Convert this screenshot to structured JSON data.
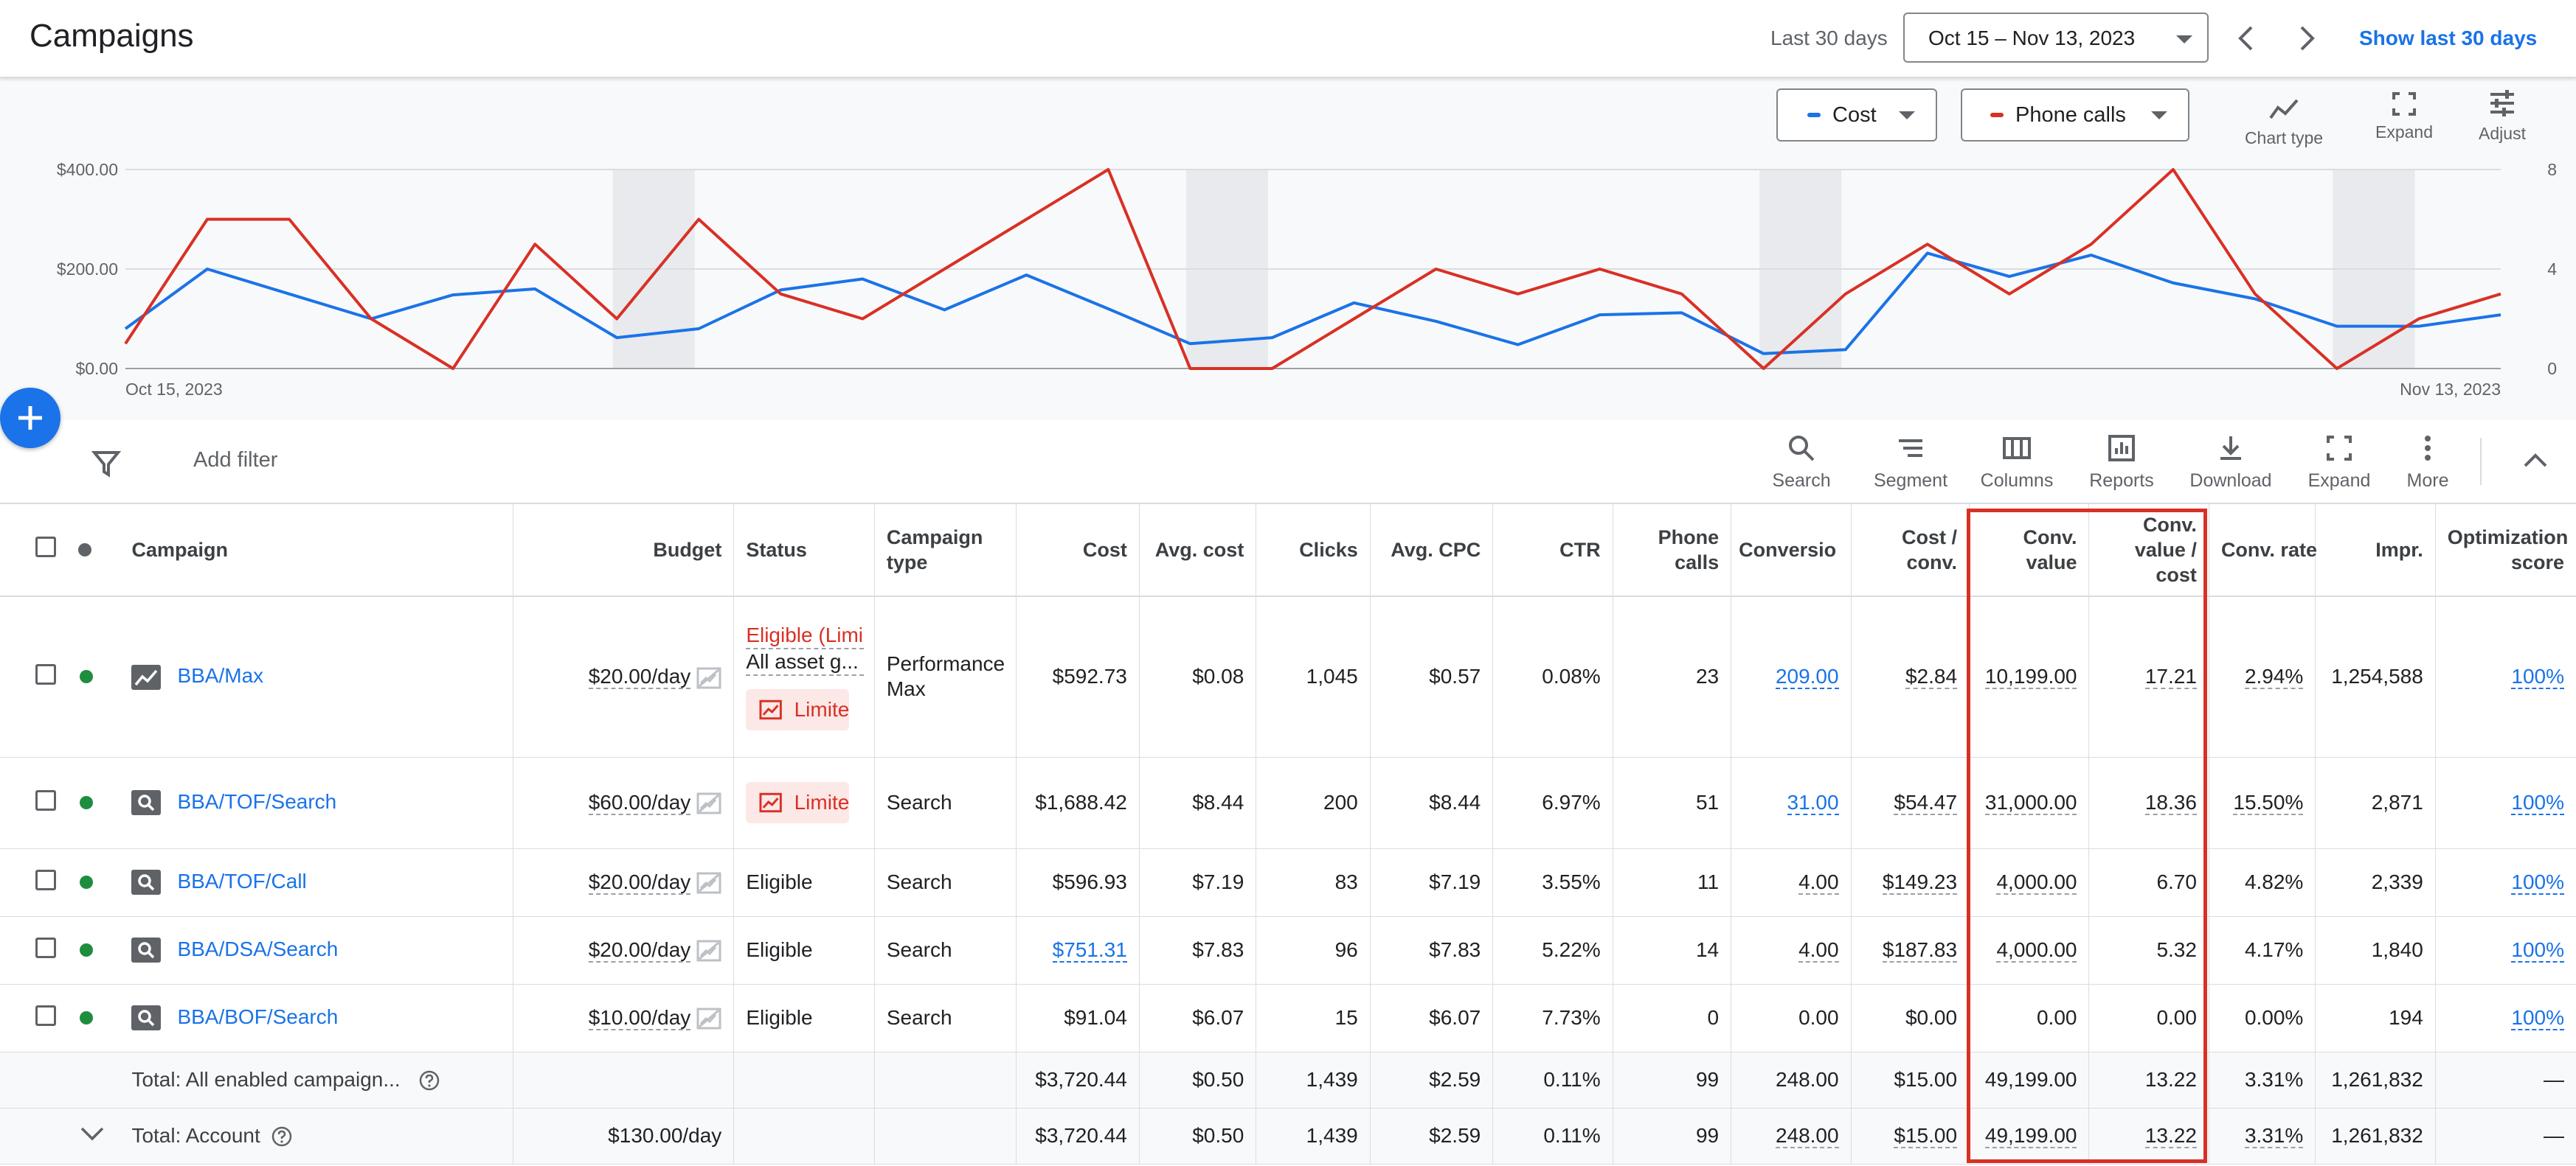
{
  "header": {
    "title": "Campaigns",
    "range_label": "Last 30 days",
    "date_range": "Oct 15 – Nov 13, 2023",
    "show_last": "Show last 30 days"
  },
  "chart_toolbar": {
    "metric1": "Cost",
    "metric2": "Phone calls",
    "chart_type": "Chart type",
    "expand": "Expand",
    "adjust": "Adjust"
  },
  "chart_data": {
    "type": "line",
    "x_start_label": "Oct 15, 2023",
    "x_end_label": "Nov 13, 2023",
    "y_left_ticks": [
      "$400.00",
      "$200.00",
      "$0.00"
    ],
    "y_right_ticks": [
      "8",
      "4",
      "0"
    ],
    "ylim_left": [
      0,
      400
    ],
    "ylim_right": [
      0,
      8
    ],
    "grid": true,
    "colors": {
      "cost": "#1a73e8",
      "phone_calls": "#d93025"
    },
    "series": [
      {
        "name": "Cost",
        "axis": "left",
        "values": [
          80,
          200,
          150,
          100,
          148,
          160,
          62,
          80,
          158,
          180,
          118,
          188,
          120,
          50,
          62,
          132,
          95,
          48,
          108,
          112,
          30,
          38,
          232,
          185,
          228,
          172,
          140,
          85,
          85,
          108
        ]
      },
      {
        "name": "Phone calls",
        "axis": "right",
        "values": [
          1,
          6,
          6,
          2,
          0,
          5,
          2,
          6,
          3,
          2,
          4,
          6,
          8,
          0,
          0,
          2,
          4,
          3,
          4,
          3,
          0,
          3,
          5,
          3,
          5,
          8,
          3,
          0,
          2,
          3
        ]
      }
    ],
    "weekend_bands": [
      [
        6,
        7
      ],
      [
        13,
        14
      ],
      [
        20,
        21
      ],
      [
        27,
        28
      ]
    ]
  },
  "filter_bar": {
    "add_filter": "Add filter",
    "tools": [
      "Search",
      "Segment",
      "Columns",
      "Reports",
      "Download",
      "Expand",
      "More"
    ]
  },
  "table": {
    "headers": {
      "campaign": "Campaign",
      "budget": "Budget",
      "status": "Status",
      "type_1": "Campaign",
      "type_2": "type",
      "cost": "Cost",
      "avg_cost": "Avg. cost",
      "clicks": "Clicks",
      "avg_cpc": "Avg. CPC",
      "ctr": "CTR",
      "phone_1": "Phone",
      "phone_2": "calls",
      "conversions": "Conversio",
      "cost_conv_1": "Cost /",
      "cost_conv_2": "conv.",
      "conv_value_1": "Conv.",
      "conv_value_2": "value",
      "cvc_1": "Conv.",
      "cvc_2": "value /",
      "cvc_3": "cost",
      "conv_rate": "Conv. rate",
      "impr": "Impr.",
      "opt_1": "Optimization",
      "opt_2": "score"
    },
    "rows": [
      {
        "name": "BBA/Max",
        "budget": "$20.00/day",
        "status1": "Eligible (Limi",
        "status2": "All asset g...",
        "limited": "Limite",
        "type1": "Performance",
        "type2": "Max",
        "cost": "$592.73",
        "avg_cost": "$0.08",
        "clicks": "1,045",
        "avg_cpc": "$0.57",
        "ctr": "0.08%",
        "phone": "23",
        "conv": "209.00",
        "cost_conv": "$2.84",
        "conv_value": "10,199.00",
        "cvc": "17.21",
        "conv_rate": "2.94%",
        "impr": "1,254,588",
        "opt": "100%"
      },
      {
        "name": "BBA/TOF/Search",
        "budget": "$60.00/day",
        "limited": "Limite",
        "type": "Search",
        "cost": "$1,688.42",
        "avg_cost": "$8.44",
        "clicks": "200",
        "avg_cpc": "$8.44",
        "ctr": "6.97%",
        "phone": "51",
        "conv": "31.00",
        "cost_conv": "$54.47",
        "conv_value": "31,000.00",
        "cvc": "18.36",
        "conv_rate": "15.50%",
        "impr": "2,871",
        "opt": "100%"
      },
      {
        "name": "BBA/TOF/Call",
        "budget": "$20.00/day",
        "status": "Eligible",
        "type": "Search",
        "cost": "$596.93",
        "avg_cost": "$7.19",
        "clicks": "83",
        "avg_cpc": "$7.19",
        "ctr": "3.55%",
        "phone": "11",
        "conv": "4.00",
        "cost_conv": "$149.23",
        "conv_value": "4,000.00",
        "cvc": "6.70",
        "conv_rate": "4.82%",
        "impr": "2,339",
        "opt": "100%"
      },
      {
        "name": "BBA/DSA/Search",
        "budget": "$20.00/day",
        "status": "Eligible",
        "type": "Search",
        "cost": "$751.31",
        "avg_cost": "$7.83",
        "clicks": "96",
        "avg_cpc": "$7.83",
        "ctr": "5.22%",
        "phone": "14",
        "conv": "4.00",
        "cost_conv": "$187.83",
        "conv_value": "4,000.00",
        "cvc": "5.32",
        "conv_rate": "4.17%",
        "impr": "1,840",
        "opt": "100%"
      },
      {
        "name": "BBA/BOF/Search",
        "budget": "$10.00/day",
        "status": "Eligible",
        "type": "Search",
        "cost": "$91.04",
        "avg_cost": "$6.07",
        "clicks": "15",
        "avg_cpc": "$6.07",
        "ctr": "7.73%",
        "phone": "0",
        "conv": "0.00",
        "cost_conv": "$0.00",
        "conv_value": "0.00",
        "cvc": "0.00",
        "conv_rate": "0.00%",
        "impr": "194",
        "opt": "100%"
      }
    ],
    "totals": [
      {
        "label": "Total: All enabled campaign...",
        "budget": "",
        "cost": "$3,720.44",
        "avg_cost": "$0.50",
        "clicks": "1,439",
        "avg_cpc": "$2.59",
        "ctr": "0.11%",
        "phone": "99",
        "conv": "248.00",
        "cost_conv": "$15.00",
        "conv_value": "49,199.00",
        "cvc": "13.22",
        "conv_rate": "3.31%",
        "impr": "1,261,832",
        "opt": "—"
      },
      {
        "label": "Total: Account",
        "budget": "$130.00/day",
        "cost": "$3,720.44",
        "avg_cost": "$0.50",
        "clicks": "1,439",
        "avg_cpc": "$2.59",
        "ctr": "0.11%",
        "phone": "99",
        "conv": "248.00",
        "cost_conv": "$15.00",
        "conv_value": "49,199.00",
        "cvc": "13.22",
        "conv_rate": "3.31%",
        "impr": "1,261,832",
        "opt": "—"
      }
    ]
  }
}
